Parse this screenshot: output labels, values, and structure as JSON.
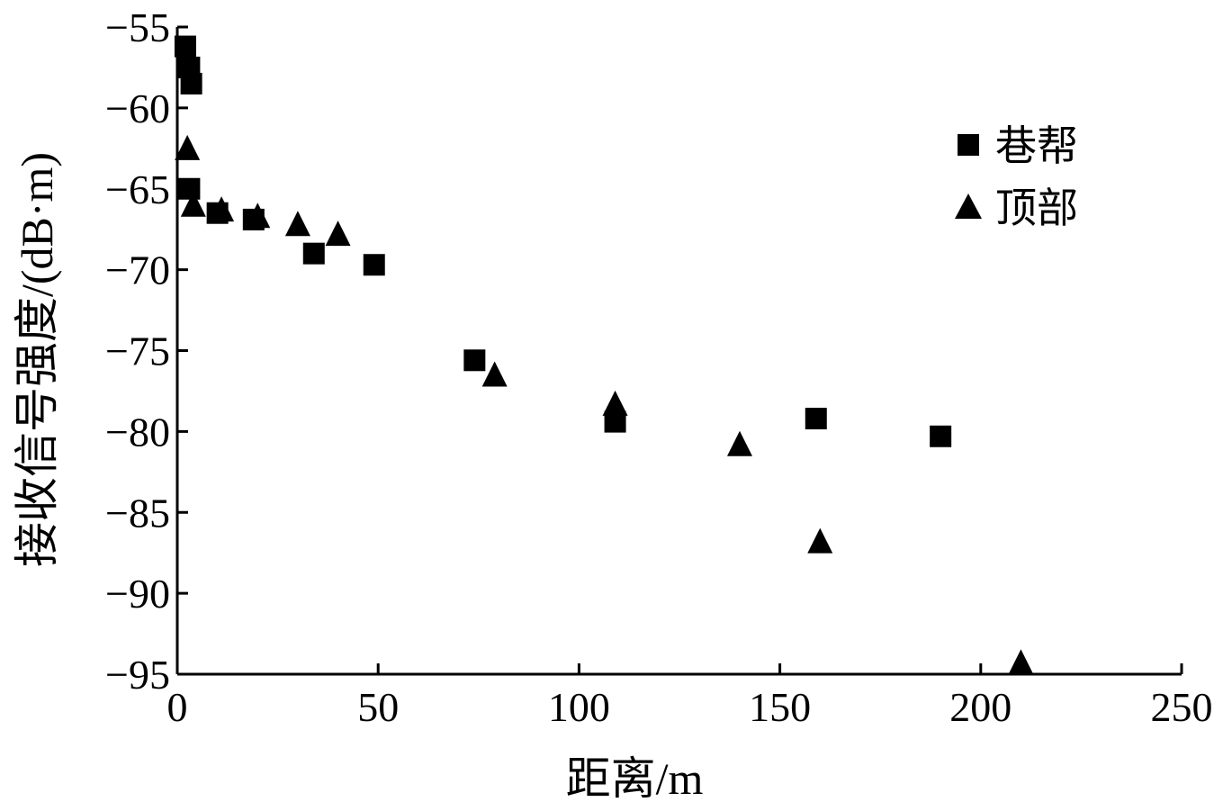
{
  "chart_data": {
    "type": "scatter",
    "title": "",
    "xlabel": "距离/m",
    "ylabel": "接收信号强度/(dB·m)",
    "xlim": [
      0,
      250
    ],
    "ylim": [
      -95,
      -55
    ],
    "x_ticks": [
      0,
      50,
      100,
      150,
      200,
      250
    ],
    "y_ticks": [
      -55,
      -60,
      -65,
      -70,
      -75,
      -80,
      -85,
      -90,
      -95
    ],
    "x_tick_labels": [
      "0",
      "50",
      "100",
      "150",
      "200",
      "250"
    ],
    "y_tick_labels": [
      "−55",
      "−60",
      "−65",
      "−70",
      "−75",
      "−80",
      "−85",
      "−90",
      "−95"
    ],
    "grid": false,
    "legend_position": "top-right",
    "series": [
      {
        "name": "巷帮",
        "marker": "square",
        "color": "#000000",
        "points": [
          {
            "x": 2,
            "y": -56.2
          },
          {
            "x": 3,
            "y": -57.5
          },
          {
            "x": 3.5,
            "y": -58.5
          },
          {
            "x": 3,
            "y": -65.0
          },
          {
            "x": 10,
            "y": -66.5
          },
          {
            "x": 19,
            "y": -66.9
          },
          {
            "x": 34,
            "y": -69.0
          },
          {
            "x": 49,
            "y": -69.7
          },
          {
            "x": 74,
            "y": -75.6
          },
          {
            "x": 109,
            "y": -79.4
          },
          {
            "x": 159,
            "y": -79.2
          },
          {
            "x": 190,
            "y": -80.3
          }
        ]
      },
      {
        "name": "顶部",
        "marker": "triangle",
        "color": "#000000",
        "points": [
          {
            "x": 2.5,
            "y": -62.5
          },
          {
            "x": 4,
            "y": -66.0
          },
          {
            "x": 11,
            "y": -66.3
          },
          {
            "x": 20,
            "y": -66.7
          },
          {
            "x": 30,
            "y": -67.2
          },
          {
            "x": 40,
            "y": -67.8
          },
          {
            "x": 79,
            "y": -76.5
          },
          {
            "x": 109,
            "y": -78.3
          },
          {
            "x": 140,
            "y": -80.8
          },
          {
            "x": 160,
            "y": -86.8
          },
          {
            "x": 210,
            "y": -94.3
          }
        ]
      }
    ]
  }
}
